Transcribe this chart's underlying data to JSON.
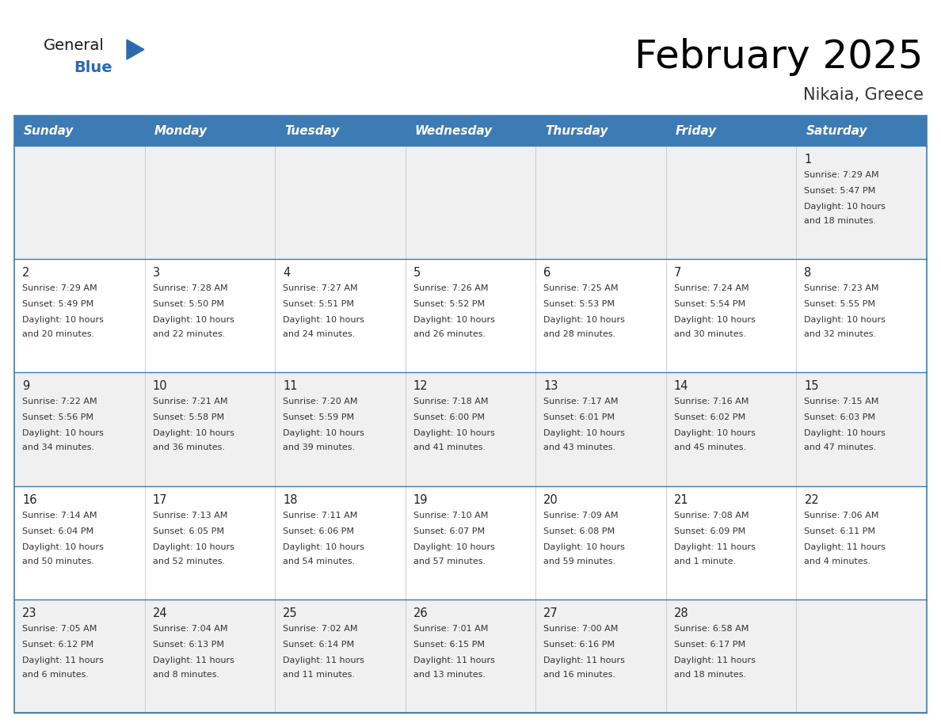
{
  "title": "February 2025",
  "subtitle": "Nikaia, Greece",
  "header_bg": "#3D7BB5",
  "header_text": "#FFFFFF",
  "cell_bg_even": "#F0F0F0",
  "cell_bg_odd": "#FFFFFF",
  "day_names": [
    "Sunday",
    "Monday",
    "Tuesday",
    "Wednesday",
    "Thursday",
    "Friday",
    "Saturday"
  ],
  "days": [
    {
      "day": 1,
      "col": 6,
      "row": 0,
      "sunrise": "7:29 AM",
      "sunset": "5:47 PM",
      "daylight": "10 hours and 18 minutes."
    },
    {
      "day": 2,
      "col": 0,
      "row": 1,
      "sunrise": "7:29 AM",
      "sunset": "5:49 PM",
      "daylight": "10 hours and 20 minutes."
    },
    {
      "day": 3,
      "col": 1,
      "row": 1,
      "sunrise": "7:28 AM",
      "sunset": "5:50 PM",
      "daylight": "10 hours and 22 minutes."
    },
    {
      "day": 4,
      "col": 2,
      "row": 1,
      "sunrise": "7:27 AM",
      "sunset": "5:51 PM",
      "daylight": "10 hours and 24 minutes."
    },
    {
      "day": 5,
      "col": 3,
      "row": 1,
      "sunrise": "7:26 AM",
      "sunset": "5:52 PM",
      "daylight": "10 hours and 26 minutes."
    },
    {
      "day": 6,
      "col": 4,
      "row": 1,
      "sunrise": "7:25 AM",
      "sunset": "5:53 PM",
      "daylight": "10 hours and 28 minutes."
    },
    {
      "day": 7,
      "col": 5,
      "row": 1,
      "sunrise": "7:24 AM",
      "sunset": "5:54 PM",
      "daylight": "10 hours and 30 minutes."
    },
    {
      "day": 8,
      "col": 6,
      "row": 1,
      "sunrise": "7:23 AM",
      "sunset": "5:55 PM",
      "daylight": "10 hours and 32 minutes."
    },
    {
      "day": 9,
      "col": 0,
      "row": 2,
      "sunrise": "7:22 AM",
      "sunset": "5:56 PM",
      "daylight": "10 hours and 34 minutes."
    },
    {
      "day": 10,
      "col": 1,
      "row": 2,
      "sunrise": "7:21 AM",
      "sunset": "5:58 PM",
      "daylight": "10 hours and 36 minutes."
    },
    {
      "day": 11,
      "col": 2,
      "row": 2,
      "sunrise": "7:20 AM",
      "sunset": "5:59 PM",
      "daylight": "10 hours and 39 minutes."
    },
    {
      "day": 12,
      "col": 3,
      "row": 2,
      "sunrise": "7:18 AM",
      "sunset": "6:00 PM",
      "daylight": "10 hours and 41 minutes."
    },
    {
      "day": 13,
      "col": 4,
      "row": 2,
      "sunrise": "7:17 AM",
      "sunset": "6:01 PM",
      "daylight": "10 hours and 43 minutes."
    },
    {
      "day": 14,
      "col": 5,
      "row": 2,
      "sunrise": "7:16 AM",
      "sunset": "6:02 PM",
      "daylight": "10 hours and 45 minutes."
    },
    {
      "day": 15,
      "col": 6,
      "row": 2,
      "sunrise": "7:15 AM",
      "sunset": "6:03 PM",
      "daylight": "10 hours and 47 minutes."
    },
    {
      "day": 16,
      "col": 0,
      "row": 3,
      "sunrise": "7:14 AM",
      "sunset": "6:04 PM",
      "daylight": "10 hours and 50 minutes."
    },
    {
      "day": 17,
      "col": 1,
      "row": 3,
      "sunrise": "7:13 AM",
      "sunset": "6:05 PM",
      "daylight": "10 hours and 52 minutes."
    },
    {
      "day": 18,
      "col": 2,
      "row": 3,
      "sunrise": "7:11 AM",
      "sunset": "6:06 PM",
      "daylight": "10 hours and 54 minutes."
    },
    {
      "day": 19,
      "col": 3,
      "row": 3,
      "sunrise": "7:10 AM",
      "sunset": "6:07 PM",
      "daylight": "10 hours and 57 minutes."
    },
    {
      "day": 20,
      "col": 4,
      "row": 3,
      "sunrise": "7:09 AM",
      "sunset": "6:08 PM",
      "daylight": "10 hours and 59 minutes."
    },
    {
      "day": 21,
      "col": 5,
      "row": 3,
      "sunrise": "7:08 AM",
      "sunset": "6:09 PM",
      "daylight": "11 hours and 1 minute."
    },
    {
      "day": 22,
      "col": 6,
      "row": 3,
      "sunrise": "7:06 AM",
      "sunset": "6:11 PM",
      "daylight": "11 hours and 4 minutes."
    },
    {
      "day": 23,
      "col": 0,
      "row": 4,
      "sunrise": "7:05 AM",
      "sunset": "6:12 PM",
      "daylight": "11 hours and 6 minutes."
    },
    {
      "day": 24,
      "col": 1,
      "row": 4,
      "sunrise": "7:04 AM",
      "sunset": "6:13 PM",
      "daylight": "11 hours and 8 minutes."
    },
    {
      "day": 25,
      "col": 2,
      "row": 4,
      "sunrise": "7:02 AM",
      "sunset": "6:14 PM",
      "daylight": "11 hours and 11 minutes."
    },
    {
      "day": 26,
      "col": 3,
      "row": 4,
      "sunrise": "7:01 AM",
      "sunset": "6:15 PM",
      "daylight": "11 hours and 13 minutes."
    },
    {
      "day": 27,
      "col": 4,
      "row": 4,
      "sunrise": "7:00 AM",
      "sunset": "6:16 PM",
      "daylight": "11 hours and 16 minutes."
    },
    {
      "day": 28,
      "col": 5,
      "row": 4,
      "sunrise": "6:58 AM",
      "sunset": "6:17 PM",
      "daylight": "11 hours and 18 minutes."
    }
  ],
  "num_rows": 5,
  "num_cols": 7,
  "logo_color_general": "#1a1a1a",
  "logo_color_blue": "#2B6BAD",
  "logo_triangle_color": "#2B6BAD",
  "title_fontsize": 36,
  "subtitle_fontsize": 15,
  "dayname_fontsize": 11,
  "daynum_fontsize": 10.5,
  "cell_text_fontsize": 8.0,
  "line_color": "#3D7BB5"
}
